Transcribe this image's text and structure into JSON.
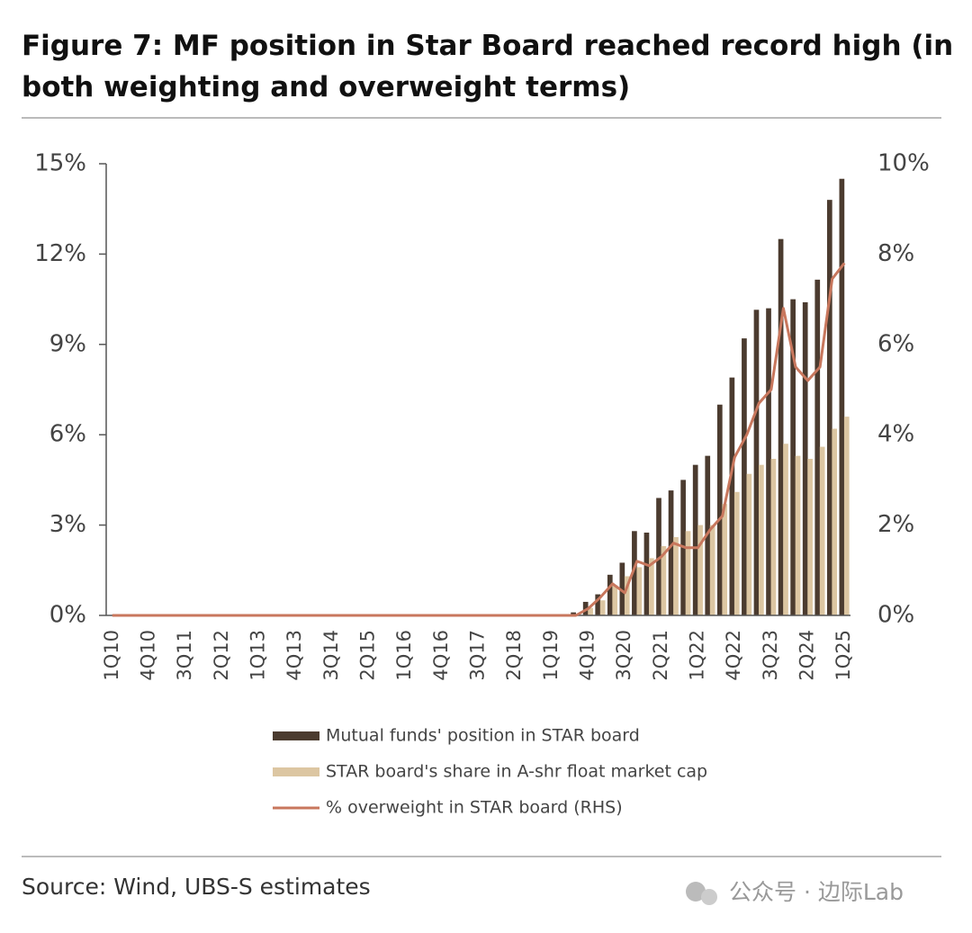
{
  "chart_data": {
    "type": "bar",
    "title": "Figure 7: MF position in Star Board reached record high (in both weighting and overweight terms)",
    "categories": [
      "1Q10",
      null,
      null,
      "4Q10",
      null,
      null,
      "3Q11",
      null,
      null,
      "2Q12",
      null,
      null,
      "1Q13",
      null,
      null,
      "4Q13",
      null,
      null,
      "3Q14",
      null,
      null,
      "2Q15",
      null,
      null,
      "1Q16",
      null,
      null,
      "4Q16",
      null,
      null,
      "3Q17",
      null,
      null,
      "2Q18",
      null,
      null,
      "1Q19",
      null,
      null,
      "4Q19",
      null,
      null,
      "3Q20",
      null,
      null,
      "2Q21",
      null,
      null,
      "1Q22",
      null,
      null,
      "4Q22",
      null,
      null,
      "3Q23",
      null,
      null,
      "2Q24",
      null,
      null,
      "1Q25"
    ],
    "series": [
      {
        "name": "Mutual funds' position in STAR board",
        "color": "#4b3b2f",
        "type": "bar",
        "values": [
          0,
          0,
          0,
          0,
          0,
          0,
          0,
          0,
          0,
          0,
          0,
          0,
          0,
          0,
          0,
          0,
          0,
          0,
          0,
          0,
          0,
          0,
          0,
          0,
          0,
          0,
          0,
          0,
          0,
          0,
          0,
          0,
          0,
          0,
          0,
          0,
          0,
          0,
          0.1,
          0.45,
          0.7,
          1.35,
          1.75,
          2.8,
          2.75,
          3.9,
          4.15,
          4.5,
          5.0,
          5.3,
          7.0,
          7.9,
          9.2,
          10.15,
          10.2,
          12.5,
          10.5,
          10.4,
          11.15,
          13.8,
          14.5
        ]
      },
      {
        "name": "STAR board's share in A-shr float market cap",
        "color": "#dcc6a2",
        "type": "bar",
        "values": [
          0,
          0,
          0,
          0,
          0,
          0,
          0,
          0,
          0,
          0,
          0,
          0,
          0,
          0,
          0,
          0,
          0,
          0,
          0,
          0,
          0,
          0,
          0,
          0,
          0,
          0,
          0,
          0,
          0,
          0,
          0,
          0,
          0,
          0,
          0,
          0,
          0,
          0,
          0.05,
          0.25,
          0.5,
          1.0,
          1.3,
          1.6,
          1.9,
          2.3,
          2.6,
          2.8,
          3.0,
          3.0,
          3.7,
          4.1,
          4.7,
          5.0,
          5.2,
          5.7,
          5.3,
          5.2,
          5.6,
          6.2,
          6.6
        ]
      },
      {
        "name": "% overweight in STAR board (RHS)",
        "color": "#c8775d",
        "type": "line",
        "axis": "y2",
        "values": [
          0,
          0,
          0,
          0,
          0,
          0,
          0,
          0,
          0,
          0,
          0,
          0,
          0,
          0,
          0,
          0,
          0,
          0,
          0,
          0,
          0,
          0,
          0,
          0,
          0,
          0,
          0,
          0,
          0,
          0,
          0,
          0,
          0,
          0,
          0,
          0,
          0,
          0,
          0,
          0.15,
          0.4,
          0.7,
          0.5,
          1.2,
          1.1,
          1.3,
          1.6,
          1.5,
          1.5,
          1.9,
          2.2,
          3.5,
          4.0,
          4.7,
          5.0,
          6.8,
          5.5,
          5.2,
          5.5,
          7.45,
          7.8
        ]
      }
    ],
    "ylim": [
      0,
      15
    ],
    "yticks": [
      {
        "value": 0,
        "label": "0%"
      },
      {
        "value": 3,
        "label": "3%"
      },
      {
        "value": 6,
        "label": "6%"
      },
      {
        "value": 9,
        "label": "9%"
      },
      {
        "value": 12,
        "label": "12%"
      },
      {
        "value": 15,
        "label": "15%"
      }
    ],
    "y2lim": [
      0,
      10
    ],
    "y2ticks": [
      {
        "value": 0,
        "label": "0%"
      },
      {
        "value": 2,
        "label": "2%"
      },
      {
        "value": 4,
        "label": "4%"
      },
      {
        "value": 6,
        "label": "6%"
      },
      {
        "value": 8,
        "label": "8%"
      },
      {
        "value": 10,
        "label": "10%"
      }
    ],
    "grid": false,
    "source": "Source: Wind, UBS-S estimates",
    "watermark": "公众号 · 边际Lab"
  }
}
